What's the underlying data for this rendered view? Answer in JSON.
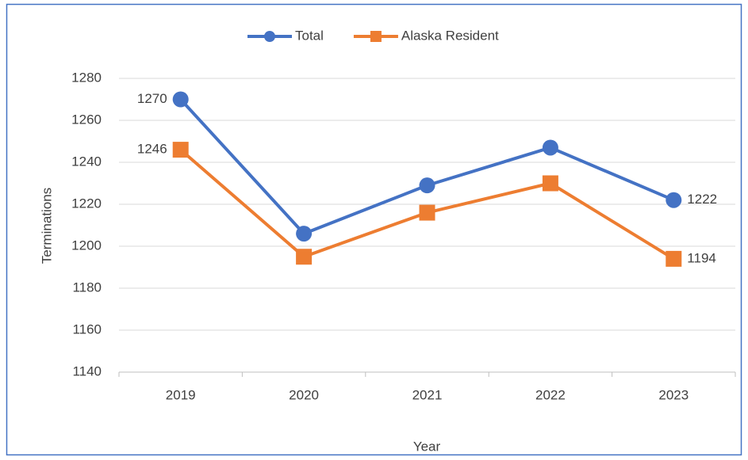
{
  "chart_data": {
    "type": "line",
    "x_label": "Year",
    "y_label": "Terminations",
    "categories": [
      "2019",
      "2020",
      "2021",
      "2022",
      "2023"
    ],
    "series": [
      {
        "name": "Total",
        "color": "#4472c4",
        "marker": "circle",
        "values": [
          1270,
          1206,
          1229,
          1247,
          1222
        ],
        "value_labels": [
          "1270",
          null,
          null,
          null,
          "1222"
        ]
      },
      {
        "name": "Alaska Resident",
        "color": "#ed7d31",
        "marker": "square",
        "values": [
          1246,
          1195,
          1216,
          1230,
          1194
        ],
        "value_labels": [
          "1246",
          null,
          null,
          null,
          "1194"
        ]
      }
    ],
    "ylim": [
      1140,
      1280
    ],
    "yticks": [
      1140,
      1160,
      1180,
      1200,
      1220,
      1240,
      1260,
      1280
    ],
    "grid": true,
    "legend": "top"
  }
}
